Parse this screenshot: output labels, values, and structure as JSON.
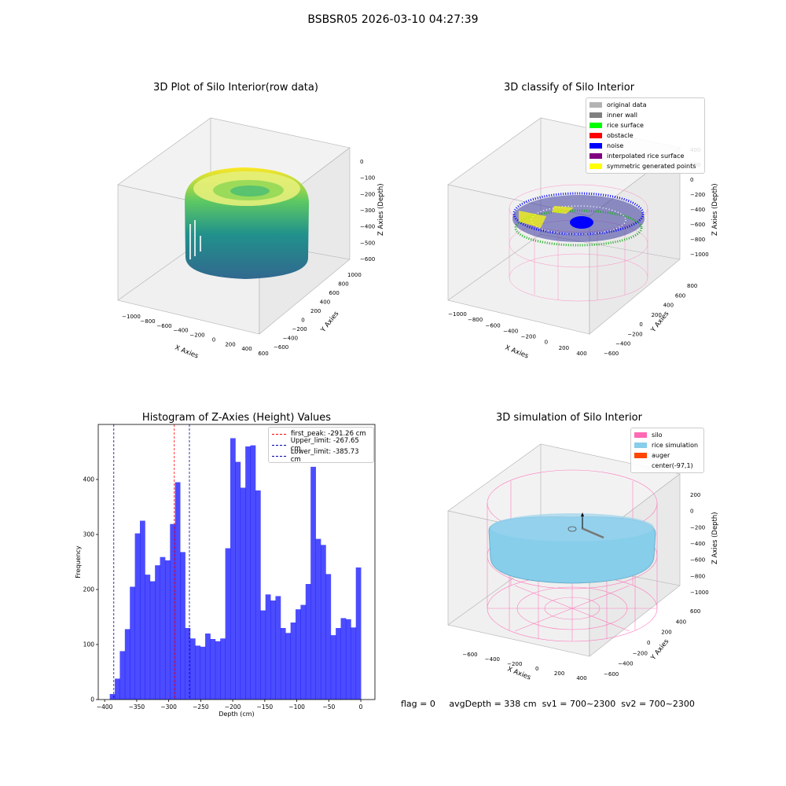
{
  "figure": {
    "suptitle": "BSBSR05 2026-03-10 04:27:39",
    "footer": {
      "flag": "flag = 0",
      "avg_depth": "avgDepth = 338 cm",
      "sv1": "sv1 = 700~2300",
      "sv2": "sv2 = 700~2300"
    }
  },
  "panels": {
    "raw": {
      "title": "3D Plot of Silo Interior(row data)",
      "xlabel": "X Axies",
      "ylabel": "Y Axies",
      "zlabel": "Z Axies (Depth)",
      "xticks": [
        "−1000",
        "−800",
        "−600",
        "−400",
        "−200",
        "0",
        "200",
        "400",
        "600"
      ],
      "yticks": [
        "−600",
        "−400",
        "−200",
        "0",
        "200",
        "400",
        "600",
        "800",
        "1000"
      ],
      "zticks": [
        "0",
        "−100",
        "−200",
        "−300",
        "−400",
        "−500",
        "−600"
      ]
    },
    "classify": {
      "title": "3D classify of Silo Interior",
      "xlabel": "X Axies",
      "ylabel": "Y Axies",
      "zlabel": "Z Axies (Depth)",
      "xticks": [
        "−1000",
        "−800",
        "−600",
        "−400",
        "−200",
        "0",
        "200",
        "400"
      ],
      "yticks": [
        "−600",
        "−400",
        "−200",
        "0",
        "200",
        "400",
        "600",
        "800"
      ],
      "zticks": [
        "400",
        "200",
        "0",
        "−200",
        "−400",
        "−600",
        "−800",
        "−1000"
      ],
      "legend": [
        {
          "label": "original data",
          "color": "#b3b3b3"
        },
        {
          "label": "inner wall",
          "color": "#808080"
        },
        {
          "label": "rice surface",
          "color": "#00ff00"
        },
        {
          "label": "obstacle",
          "color": "#ff0000"
        },
        {
          "label": "noise",
          "color": "#0000ff"
        },
        {
          "label": "interpolated rice surface",
          "color": "#800080"
        },
        {
          "label": "symmetric generated points",
          "color": "#ffff00"
        }
      ]
    },
    "simulation": {
      "title": "3D simulation of Silo Interior",
      "xlabel": "X Axies",
      "ylabel": "Y Axies",
      "zlabel": "Z Axies (Depth)",
      "xticks": [
        "−600",
        "−400",
        "−200",
        "0",
        "200",
        "400"
      ],
      "yticks": [
        "−600",
        "−400",
        "−200",
        "0",
        "200",
        "400",
        "600"
      ],
      "zticks": [
        "200",
        "0",
        "−200",
        "−400",
        "−600",
        "−800",
        "−1000"
      ],
      "legend": [
        {
          "label": "silo",
          "color": "#ff69b4"
        },
        {
          "label": "rice simulation",
          "color": "#87ceeb"
        },
        {
          "label": "auger",
          "color": "#ff4500"
        },
        {
          "label": "center(-97,1)",
          "color": "none"
        }
      ]
    }
  },
  "chart_data": {
    "type": "bar",
    "title": "Histogram of Z-Axies (Height) Values",
    "xlabel": "Depth (cm)",
    "ylabel": "Frequency",
    "xlim": [
      -410,
      22
    ],
    "ylim": [
      0,
      500
    ],
    "xticks": [
      -400,
      -350,
      -300,
      -250,
      -200,
      -150,
      -100,
      -50,
      0
    ],
    "yticks": [
      0,
      100,
      200,
      300,
      400
    ],
    "bar_color": "#0000ff",
    "bin_edges_start": -392,
    "bin_width": 7.84,
    "values": [
      10,
      38,
      88,
      128,
      205,
      302,
      325,
      227,
      215,
      244,
      259,
      253,
      319,
      395,
      268,
      130,
      111,
      98,
      96,
      120,
      110,
      106,
      111,
      275,
      475,
      432,
      385,
      460,
      462,
      380,
      162,
      191,
      180,
      188,
      130,
      121,
      140,
      164,
      172,
      210,
      423,
      292,
      281,
      228,
      117,
      130,
      148,
      146,
      131,
      240
    ],
    "vlines": [
      {
        "label": "first_peak: -291.26 cm",
        "x": -291.26,
        "color": "#ff0000"
      },
      {
        "label": "Upper_limit: -267.65 cm",
        "x": -267.65,
        "color": "#0000aa"
      },
      {
        "label": "Lower_limit: -385.73 cm",
        "x": -385.73,
        "color": "#0000aa"
      }
    ],
    "legend_position": "upper-right"
  }
}
